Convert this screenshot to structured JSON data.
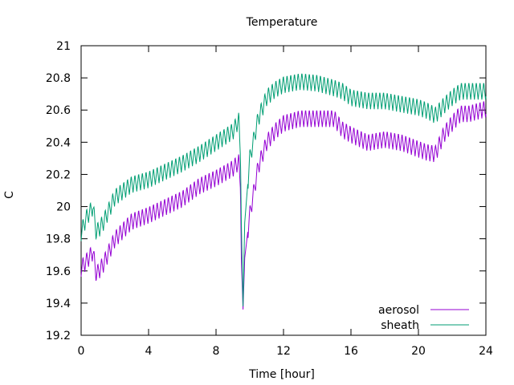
{
  "chart_data": {
    "type": "line",
    "title": "Temperature",
    "xlabel": "Time [hour]",
    "ylabel": "C",
    "xlim": [
      0,
      24
    ],
    "ylim": [
      19.2,
      21
    ],
    "x_ticks": [
      0,
      4,
      8,
      12,
      16,
      20,
      24
    ],
    "y_ticks": [
      19.2,
      19.4,
      19.6,
      19.8,
      20,
      20.2,
      20.4,
      20.6,
      20.8,
      21
    ],
    "grid": false,
    "legend_position": "bottom-right",
    "oscillation_period_hours": 0.22,
    "series": [
      {
        "name": "aerosol",
        "color": "#9400d3",
        "oscillation_amplitude": 0.055,
        "points": [
          [
            0,
            19.62
          ],
          [
            0.3,
            19.66
          ],
          [
            0.7,
            19.72
          ],
          [
            0.9,
            19.58
          ],
          [
            1.3,
            19.64
          ],
          [
            2.0,
            19.8
          ],
          [
            3.0,
            19.91
          ],
          [
            4.0,
            19.95
          ],
          [
            5.0,
            20.0
          ],
          [
            6.0,
            20.05
          ],
          [
            7.0,
            20.13
          ],
          [
            8.0,
            20.18
          ],
          [
            9.0,
            20.24
          ],
          [
            9.35,
            20.28
          ],
          [
            9.45,
            20.1
          ],
          [
            9.5,
            19.68
          ],
          [
            9.6,
            19.36
          ],
          [
            9.7,
            19.68
          ],
          [
            10.0,
            19.95
          ],
          [
            10.5,
            20.25
          ],
          [
            11.0,
            20.4
          ],
          [
            11.5,
            20.47
          ],
          [
            12.0,
            20.52
          ],
          [
            13.0,
            20.55
          ],
          [
            14.0,
            20.55
          ],
          [
            15.0,
            20.55
          ],
          [
            15.5,
            20.48
          ],
          [
            16.0,
            20.45
          ],
          [
            17.0,
            20.4
          ],
          [
            18.0,
            20.42
          ],
          [
            19.0,
            20.4
          ],
          [
            20.0,
            20.36
          ],
          [
            20.5,
            20.34
          ],
          [
            21.0,
            20.33
          ],
          [
            21.5,
            20.45
          ],
          [
            22.0,
            20.52
          ],
          [
            22.5,
            20.58
          ],
          [
            23.0,
            20.58
          ],
          [
            24.0,
            20.61
          ]
        ]
      },
      {
        "name": "sheath",
        "color": "#009e73",
        "oscillation_amplitude": 0.055,
        "points": [
          [
            0,
            19.84
          ],
          [
            0.3,
            19.93
          ],
          [
            0.7,
            20.0
          ],
          [
            0.9,
            19.84
          ],
          [
            1.3,
            19.9
          ],
          [
            2.0,
            20.06
          ],
          [
            3.0,
            20.14
          ],
          [
            4.0,
            20.17
          ],
          [
            5.0,
            20.22
          ],
          [
            6.0,
            20.27
          ],
          [
            7.0,
            20.33
          ],
          [
            8.0,
            20.4
          ],
          [
            9.0,
            20.47
          ],
          [
            9.35,
            20.54
          ],
          [
            9.45,
            20.3
          ],
          [
            9.5,
            19.9
          ],
          [
            9.6,
            19.38
          ],
          [
            9.7,
            19.9
          ],
          [
            10.0,
            20.3
          ],
          [
            10.5,
            20.55
          ],
          [
            11.0,
            20.68
          ],
          [
            11.5,
            20.73
          ],
          [
            12.0,
            20.76
          ],
          [
            13.0,
            20.78
          ],
          [
            14.0,
            20.77
          ],
          [
            15.0,
            20.74
          ],
          [
            15.5,
            20.72
          ],
          [
            16.0,
            20.68
          ],
          [
            17.0,
            20.66
          ],
          [
            18.0,
            20.66
          ],
          [
            19.0,
            20.64
          ],
          [
            20.0,
            20.62
          ],
          [
            20.5,
            20.6
          ],
          [
            21.0,
            20.57
          ],
          [
            21.5,
            20.63
          ],
          [
            22.0,
            20.68
          ],
          [
            22.5,
            20.72
          ],
          [
            23.0,
            20.72
          ],
          [
            24.0,
            20.72
          ]
        ]
      }
    ]
  }
}
